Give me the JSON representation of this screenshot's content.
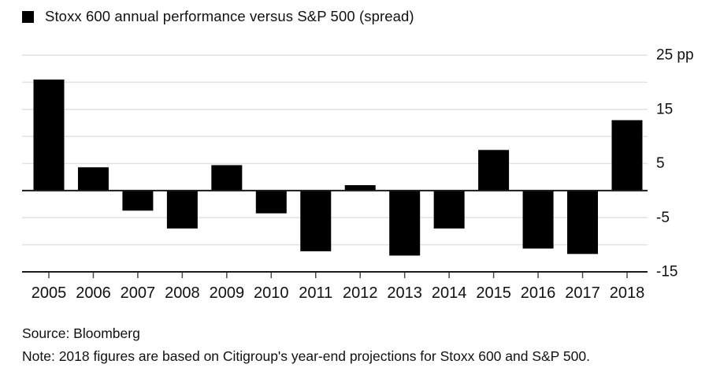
{
  "chart_data": {
    "type": "bar",
    "legend_label": "Stoxx 600 annual performance versus S&P 500 (spread)",
    "categories": [
      "2005",
      "2006",
      "2007",
      "2008",
      "2009",
      "2010",
      "2011",
      "2012",
      "2013",
      "2014",
      "2015",
      "2016",
      "2017",
      "2018"
    ],
    "values": [
      20.5,
      4.3,
      -3.7,
      -7,
      4.7,
      -4.2,
      -11.2,
      1,
      -12,
      -7,
      7.5,
      -10.7,
      -11.7,
      13
    ],
    "unit": "pp",
    "ylim": [
      -15,
      25
    ],
    "gridline_step": 5,
    "yticks": [
      {
        "value": 25,
        "label": "25 pp"
      },
      {
        "value": 15,
        "label": "15"
      },
      {
        "value": 5,
        "label": "5"
      },
      {
        "value": -5,
        "label": "-5"
      },
      {
        "value": -15,
        "label": "-15"
      }
    ],
    "grid": true,
    "legend_position": "top-left",
    "colors": {
      "bar": "#000000",
      "grid": "#e2e2e2",
      "axis": "#1a1a1a",
      "tick": "#4a4a4a",
      "text": "#111111"
    }
  },
  "footer": {
    "source": "Source: Bloomberg",
    "note": "Note: 2018 figures are based on Citigroup's year-end projections for Stoxx 600 and S&P 500."
  }
}
